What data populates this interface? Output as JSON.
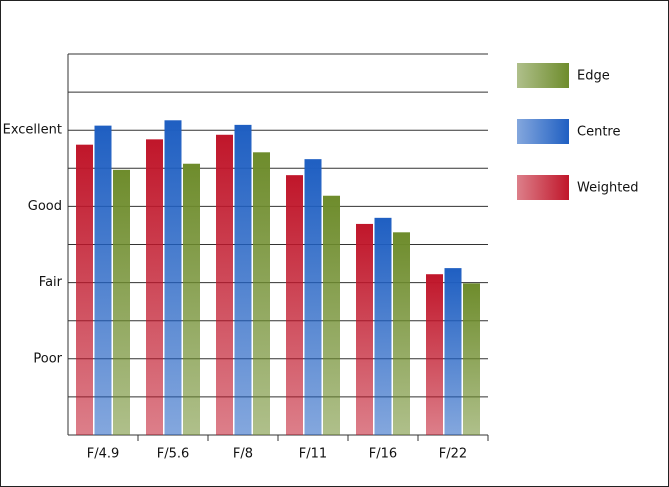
{
  "chart_data": {
    "type": "bar",
    "categories": [
      "F/4.9",
      "F/5.6",
      "F/8",
      "F/11",
      "F/16",
      "F/22"
    ],
    "series": [
      {
        "name": "Weighted",
        "color": "#c0162a",
        "values": [
          3.81,
          3.88,
          3.94,
          3.41,
          2.77,
          2.11
        ]
      },
      {
        "name": "Centre",
        "color": "#1f5fc2",
        "values": [
          4.06,
          4.13,
          4.07,
          3.62,
          2.85,
          2.19
        ]
      },
      {
        "name": "Edge",
        "color": "#6e8c2c",
        "values": [
          3.48,
          3.56,
          3.71,
          3.14,
          2.66,
          1.99
        ]
      }
    ],
    "ylim": [
      0,
      5
    ],
    "yticks": [
      {
        "value": 1,
        "label": "Poor"
      },
      {
        "value": 2,
        "label": "Fair"
      },
      {
        "value": 3,
        "label": "Good"
      },
      {
        "value": 4,
        "label": "Excellent"
      }
    ],
    "grid_lines": [
      0.5,
      1,
      1.5,
      2,
      2.5,
      3,
      3.5,
      4,
      4.5,
      5
    ],
    "grid": true,
    "legend": "right"
  }
}
